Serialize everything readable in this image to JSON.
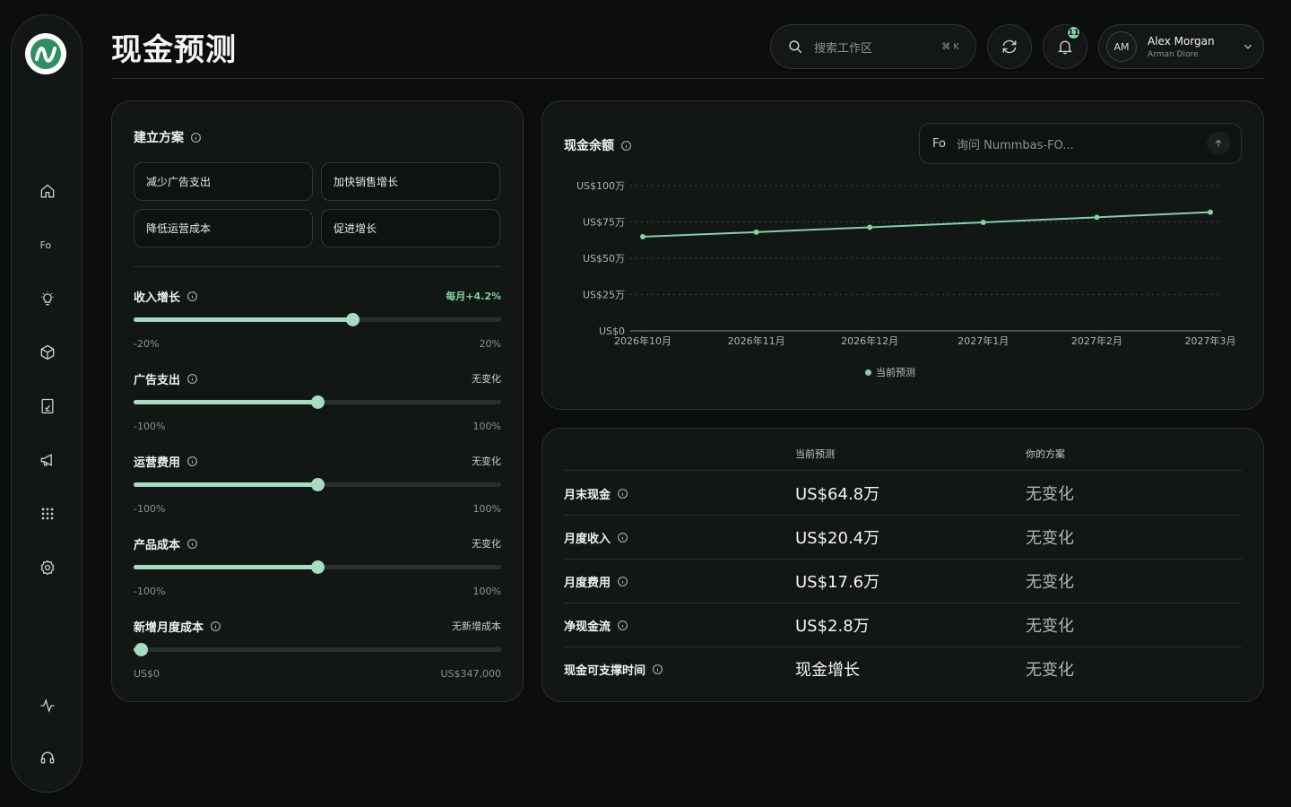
{
  "app": {
    "title": "现金预测"
  },
  "search": {
    "placeholder": "搜索工作区",
    "shortcut": "⌘ K"
  },
  "notifications": {
    "count": "11"
  },
  "user": {
    "initials": "AM",
    "name": "Alex Morgan",
    "subtitle": "Arman Diore"
  },
  "sidebar": {
    "items": [
      {
        "icon": "home-icon"
      },
      {
        "icon": "fo-icon"
      },
      {
        "icon": "lightbulb-icon"
      },
      {
        "icon": "cube-icon"
      },
      {
        "icon": "report-icon"
      },
      {
        "icon": "megaphone-icon"
      },
      {
        "icon": "apps-grid-icon"
      },
      {
        "icon": "gear-icon"
      }
    ],
    "bottom": [
      {
        "icon": "activity-icon"
      },
      {
        "icon": "headset-icon"
      }
    ]
  },
  "scenario": {
    "title": "建立方案",
    "buttons": [
      "减少广告支出",
      "加快销售增长",
      "降低运营成本",
      "促进增长"
    ],
    "sliders": [
      {
        "label": "收入增长",
        "value": "每月+4.2%",
        "min": "-20%",
        "max": "20%",
        "level": 0.595
      },
      {
        "label": "广告支出",
        "value": "无变化",
        "min": "-100%",
        "max": "100%",
        "level": 0.5
      },
      {
        "label": "运营费用",
        "value": "无变化",
        "min": "-100%",
        "max": "100%",
        "level": 0.5
      },
      {
        "label": "产品成本",
        "value": "无变化",
        "min": "-100%",
        "max": "100%",
        "level": 0.5
      },
      {
        "label": "新增月度成本",
        "value": "无新增成本",
        "min": "US$0",
        "max": "US$347,000",
        "level": 0.02
      }
    ]
  },
  "cash_chart": {
    "title": "现金余额",
    "ask_icon": "Fo",
    "ask_placeholder": "询问 Nummbas-FO..."
  },
  "chart_data": {
    "type": "line",
    "title": "现金余额",
    "categories": [
      "2026年10月",
      "2026年11月",
      "2026年12月",
      "2027年1月",
      "2027年2月",
      "2027年3月"
    ],
    "y_ticks": [
      "US$0",
      "US$25万",
      "US$50万",
      "US$75万",
      "US$100万"
    ],
    "ylim": [
      0,
      100
    ],
    "series": [
      {
        "name": "当前预测",
        "values": [
          64.8,
          68.0,
          71.3,
          74.7,
          78.2,
          81.7
        ],
        "color": "#7fd3a5"
      }
    ],
    "legend": "bottom-center",
    "grid": true
  },
  "summary_table": {
    "headers": [
      "当前预测",
      "你的方案"
    ],
    "rows": [
      {
        "label": "月末现金",
        "current": "US$64.8万",
        "yours": "无变化"
      },
      {
        "label": "月度收入",
        "current": "US$20.4万",
        "yours": "无变化"
      },
      {
        "label": "月度费用",
        "current": "US$17.6万",
        "yours": "无变化"
      },
      {
        "label": "净现金流",
        "current": "US$2.8万",
        "yours": "无变化"
      },
      {
        "label": "现金可支撑时间",
        "current": "现金增长",
        "yours": "无变化"
      }
    ]
  },
  "colors": {
    "accent": "#7fd3a5",
    "slider": "#a6dcbf",
    "background": "#0c0e0e",
    "card": "#121615"
  }
}
